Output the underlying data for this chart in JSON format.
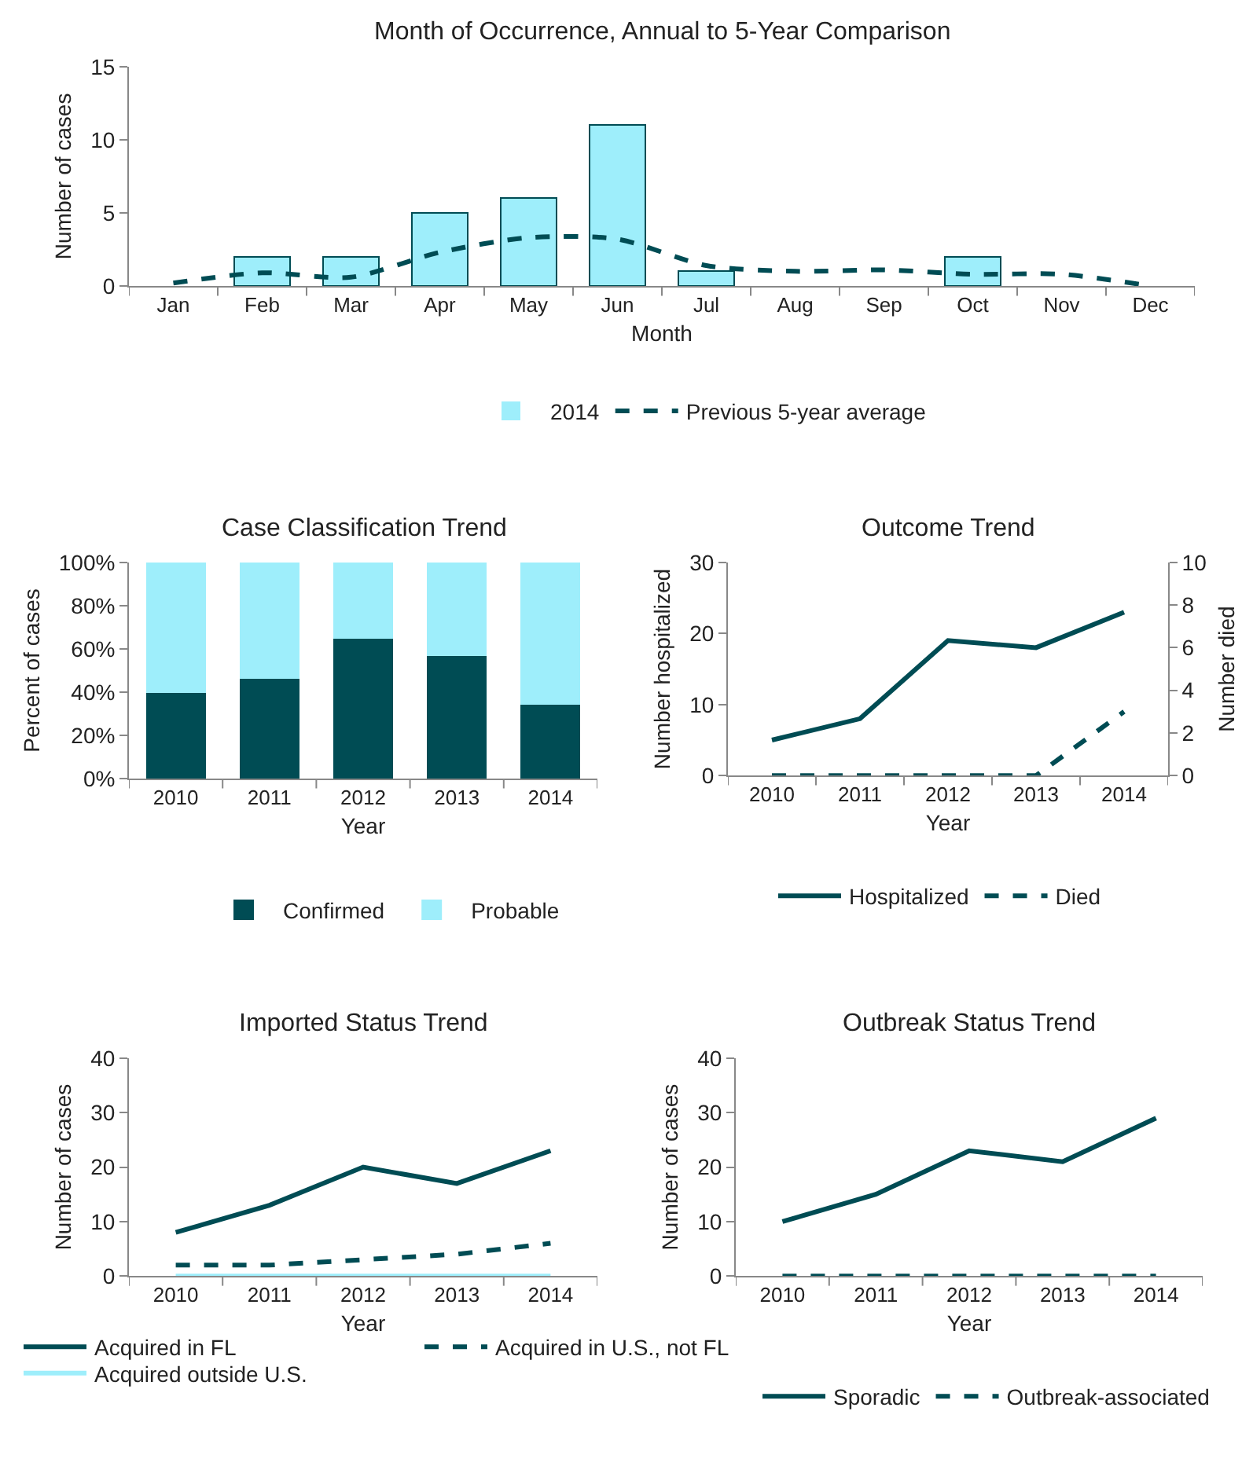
{
  "chart_data": [
    {
      "type": "bar",
      "title": "Month of Occurrence, Annual to 5-Year Comparison",
      "xlabel": "Month",
      "ylabel": "Number of cases",
      "categories": [
        "Jan",
        "Feb",
        "Mar",
        "Apr",
        "May",
        "Jun",
        "Jul",
        "Aug",
        "Sep",
        "Oct",
        "Nov",
        "Dec"
      ],
      "ylim": [
        0,
        15
      ],
      "yticks": [
        0,
        5,
        10,
        15
      ],
      "legend": "bottom",
      "series": [
        {
          "name": "2014",
          "type": "bar",
          "color": "#9eeefb",
          "values": [
            0,
            2,
            2,
            5,
            6,
            11,
            1,
            0,
            0,
            2,
            0,
            0
          ]
        },
        {
          "name": "Previous 5-year average",
          "type": "line",
          "line_style": "dashed",
          "color": "#004c54",
          "values": [
            0.2,
            0.9,
            0.6,
            2.3,
            3.3,
            3.2,
            1.4,
            1.0,
            1.1,
            0.8,
            0.8,
            0
          ]
        }
      ]
    },
    {
      "type": "bar",
      "stacked": true,
      "title": "Case Classification Trend",
      "xlabel": "Year",
      "ylabel": "Percent of cases",
      "categories": [
        "2010",
        "2011",
        "2012",
        "2013",
        "2014"
      ],
      "ylim": [
        0,
        100
      ],
      "yticks": [
        {
          "value": 0,
          "label": "0%"
        },
        {
          "value": 20,
          "label": "20%"
        },
        {
          "value": 40,
          "label": "40%"
        },
        {
          "value": 60,
          "label": "60%"
        },
        {
          "value": 80,
          "label": "80%"
        },
        {
          "value": 100,
          "label": "100%"
        }
      ],
      "legend": "bottom",
      "series": [
        {
          "name": "Confirmed",
          "color": "#004c54",
          "values": [
            40,
            46.5,
            65,
            57,
            34.5
          ]
        },
        {
          "name": "Probable",
          "color": "#9eeefb",
          "values": [
            60,
            53.5,
            35,
            43,
            65.5
          ]
        }
      ]
    },
    {
      "type": "line",
      "title": "Outcome Trend",
      "xlabel": "Year",
      "ylabel": "Number hospitalized",
      "y2label": "Number died",
      "categories": [
        "2010",
        "2011",
        "2012",
        "2013",
        "2014"
      ],
      "ylim": [
        0,
        30
      ],
      "yticks": [
        0,
        10,
        20,
        30
      ],
      "y2lim": [
        0,
        10
      ],
      "y2ticks": [
        0,
        2,
        4,
        6,
        8,
        10
      ],
      "legend": "bottom",
      "marker": "none",
      "series": [
        {
          "name": "Hospitalized",
          "color": "#004c54",
          "line_style": "solid",
          "values": [
            5,
            8,
            19,
            18,
            23
          ]
        },
        {
          "name": "Died",
          "color": "#004c54",
          "line_style": "dashed",
          "axis": "y2",
          "values": [
            0,
            0,
            0,
            0,
            3
          ]
        }
      ]
    },
    {
      "type": "line",
      "title": "Imported Status Trend",
      "xlabel": "Year",
      "ylabel": "Number of cases",
      "categories": [
        "2010",
        "2011",
        "2012",
        "2013",
        "2014"
      ],
      "ylim": [
        0,
        40
      ],
      "yticks": [
        0,
        10,
        20,
        30,
        40
      ],
      "legend": "bottom",
      "marker": "none",
      "series": [
        {
          "name": "Acquired in FL",
          "color": "#004c54",
          "line_style": "solid",
          "values": [
            8,
            13,
            20,
            17,
            23
          ]
        },
        {
          "name": "Acquired in U.S., not FL",
          "color": "#004c54",
          "line_style": "dashed",
          "values": [
            2,
            2,
            3,
            4,
            6
          ]
        },
        {
          "name": "Acquired outside U.S.",
          "color": "#9eeefb",
          "line_style": "solid",
          "values": [
            0,
            0,
            0,
            0,
            0
          ]
        }
      ]
    },
    {
      "type": "line",
      "title": "Outbreak Status Trend",
      "xlabel": "Year",
      "ylabel": "Number of cases",
      "categories": [
        "2010",
        "2011",
        "2012",
        "2013",
        "2014"
      ],
      "ylim": [
        0,
        40
      ],
      "yticks": [
        0,
        10,
        20,
        30,
        40
      ],
      "legend": "bottom",
      "marker": "none",
      "series": [
        {
          "name": "Sporadic",
          "color": "#004c54",
          "line_style": "solid",
          "values": [
            10,
            15,
            23,
            21,
            29
          ]
        },
        {
          "name": "Outbreak-associated",
          "color": "#004c54",
          "line_style": "dashed",
          "values": [
            0,
            0,
            0,
            0,
            0
          ]
        }
      ]
    }
  ]
}
